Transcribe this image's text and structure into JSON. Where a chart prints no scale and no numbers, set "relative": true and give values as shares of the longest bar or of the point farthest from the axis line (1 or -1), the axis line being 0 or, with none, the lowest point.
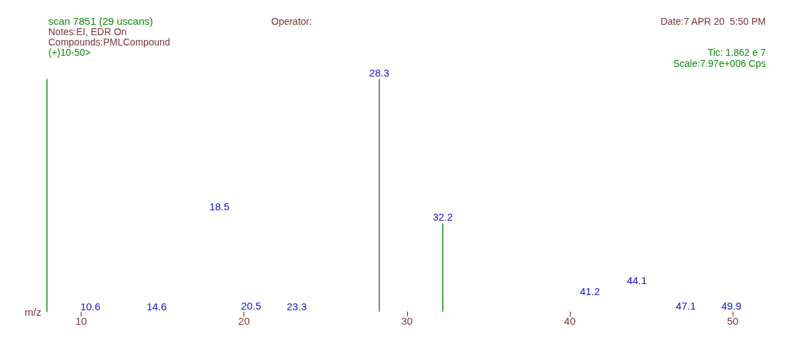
{
  "chart_data": {
    "type": "bar",
    "relative": true,
    "title": "scan 7851 (29 uscans)",
    "xlabel": "m/z",
    "x": [
      28.3,
      32.2
    ],
    "values": [
      1,
      0.38
    ],
    "colors": [
      "#555555",
      "#0a8a0a"
    ],
    "xlim": [
      7.9,
      50
    ],
    "xticks": [
      10,
      20,
      30,
      40,
      50
    ],
    "annotations": [
      "Operator:",
      "Notes:EI, EDR On",
      "Compounds:PMLCompound",
      "(+)10-50>",
      "Date:7 APR 20  5:50 PM",
      "Tic: 1.862 e 7",
      "Scale:7.97e+006 Cps",
      "10.6",
      "14.6",
      "18.5",
      "20.5",
      "23.3",
      "41.2",
      "44.1",
      "47.1",
      "49.9",
      {
        "text": "28.3",
        "x": 28.3,
        "y": 1
      },
      {
        "text": "32.2",
        "x": 32.2,
        "y": 0.38
      }
    ]
  }
}
